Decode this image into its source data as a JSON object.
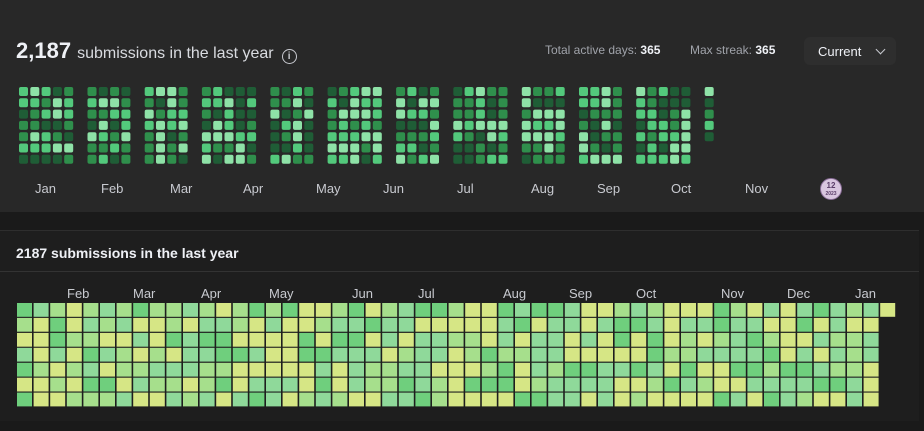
{
  "summary": {
    "count": "2,187",
    "label": "submissions in the last year",
    "info_icon": "info-icon"
  },
  "stats": {
    "active_label": "Total active days: ",
    "active_value": "365",
    "streak_label": "Max streak: ",
    "streak_value": "365"
  },
  "dropdown": {
    "selected": "Current",
    "icon": "chevron-down-icon"
  },
  "top_months": [
    "Jan",
    "Feb",
    "Mar",
    "Apr",
    "May",
    "Jun",
    "Jul",
    "Aug",
    "Sep",
    "Oct",
    "Nov"
  ],
  "badge": {
    "icon": "monthly-badge-icon",
    "line1": "12",
    "line2": "2023"
  },
  "bottom": {
    "title": "2187 submissions in the last year",
    "months": [
      "Feb",
      "Mar",
      "Apr",
      "May",
      "Jun",
      "Jul",
      "Aug",
      "Sep",
      "Oct",
      "Nov",
      "Dec",
      "Jan"
    ]
  },
  "colors": {
    "level1": "#1f5d36",
    "level2": "#2f8f4c",
    "level3": "#53c97c",
    "level4": "#8ee2a7",
    "b_yellow": "#d6e685",
    "b_green1": "#a6df8c",
    "b_green2": "#6fcf7d",
    "b_green3": "#8fd99a"
  }
}
